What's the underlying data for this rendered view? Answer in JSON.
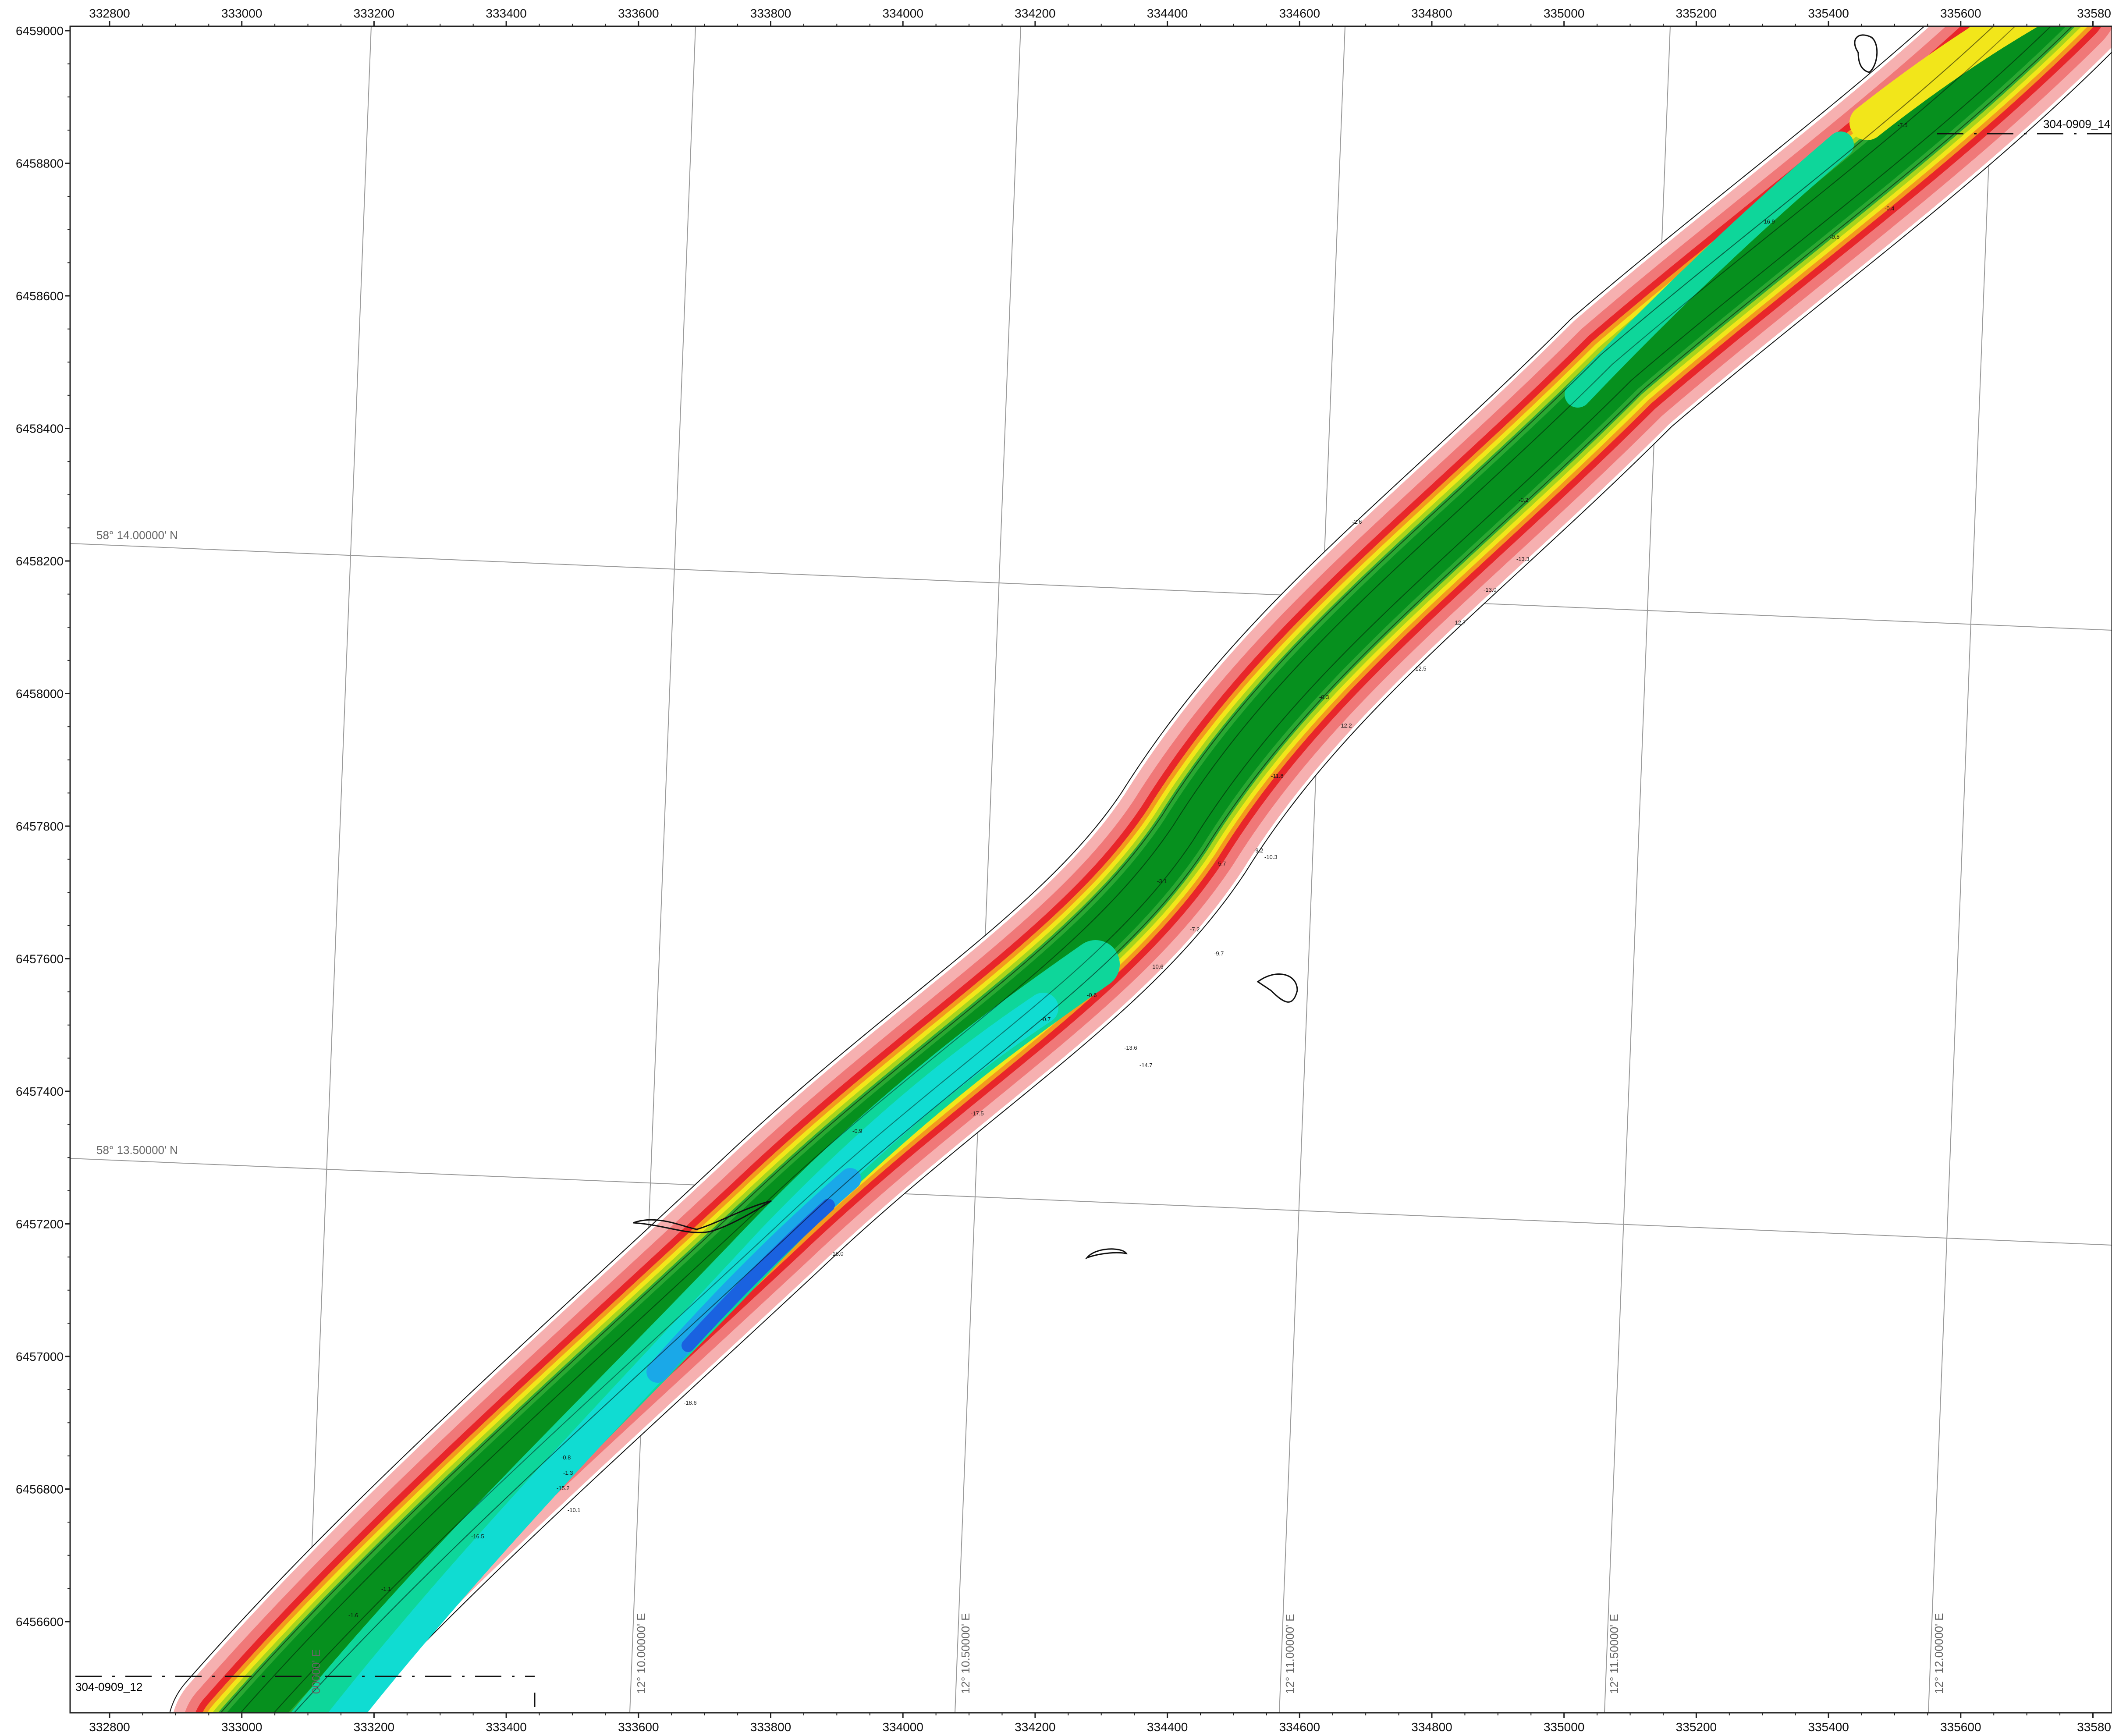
{
  "map": {
    "x_ticks": [
      "332800",
      "333000",
      "333200",
      "333400",
      "333600",
      "333800",
      "334000",
      "334200",
      "334400",
      "334600",
      "334800",
      "335000",
      "335200",
      "335400",
      "335600",
      "33580"
    ],
    "y_ticks": [
      "6459000",
      "6458800",
      "6458600",
      "6458400",
      "6458200",
      "6458000",
      "6457800",
      "6457600",
      "6457400",
      "6457200",
      "6457000",
      "6456800",
      "6456600"
    ],
    "lat_labels": [
      "58° 14.00000' N",
      "58° 13.50000' N"
    ],
    "lon_labels": [
      "12° 10.00000' E",
      "12° 10.50000' E",
      "12° 11.00000' E",
      "12° 11.50000' E",
      "12° 12.00000' E"
    ],
    "lon_label_clipped": "00000' E",
    "channel_labels": {
      "left": "304-0909_12",
      "right": "304-0909_14"
    },
    "depth_values": [
      "-0.9",
      "-0.7",
      "-0.8",
      "-0.6",
      "-1.1",
      "-1.3",
      "-1.6",
      "-2.6",
      "-3.1",
      "-5.7",
      "-7.5",
      "-9.2",
      "-10.1",
      "-10.6",
      "-10.3",
      "-11.8",
      "-12.2",
      "-12.5",
      "-12.7",
      "-13.0",
      "-13.3",
      "-13.6",
      "-14.7",
      "-15.2",
      "-16.5",
      "-16.9",
      "-17.5",
      "-18.0",
      "-18.6",
      "-9.7",
      "-7.2",
      "-0.4",
      "-0.2",
      "-0.3",
      "-0.5"
    ],
    "colors": {
      "shallow_light": "#f6b0b0",
      "shallow": "#f07878",
      "red": "#e8262a",
      "orange": "#f39a1e",
      "yellow": "#f2e61a",
      "yellow_green": "#a8d41c",
      "green": "#2aa832",
      "dark_green": "#06901e",
      "cyan_green": "#0ed69a",
      "cyan": "#10dcd2",
      "light_blue": "#1aa8e8",
      "blue": "#1a62e0"
    }
  }
}
